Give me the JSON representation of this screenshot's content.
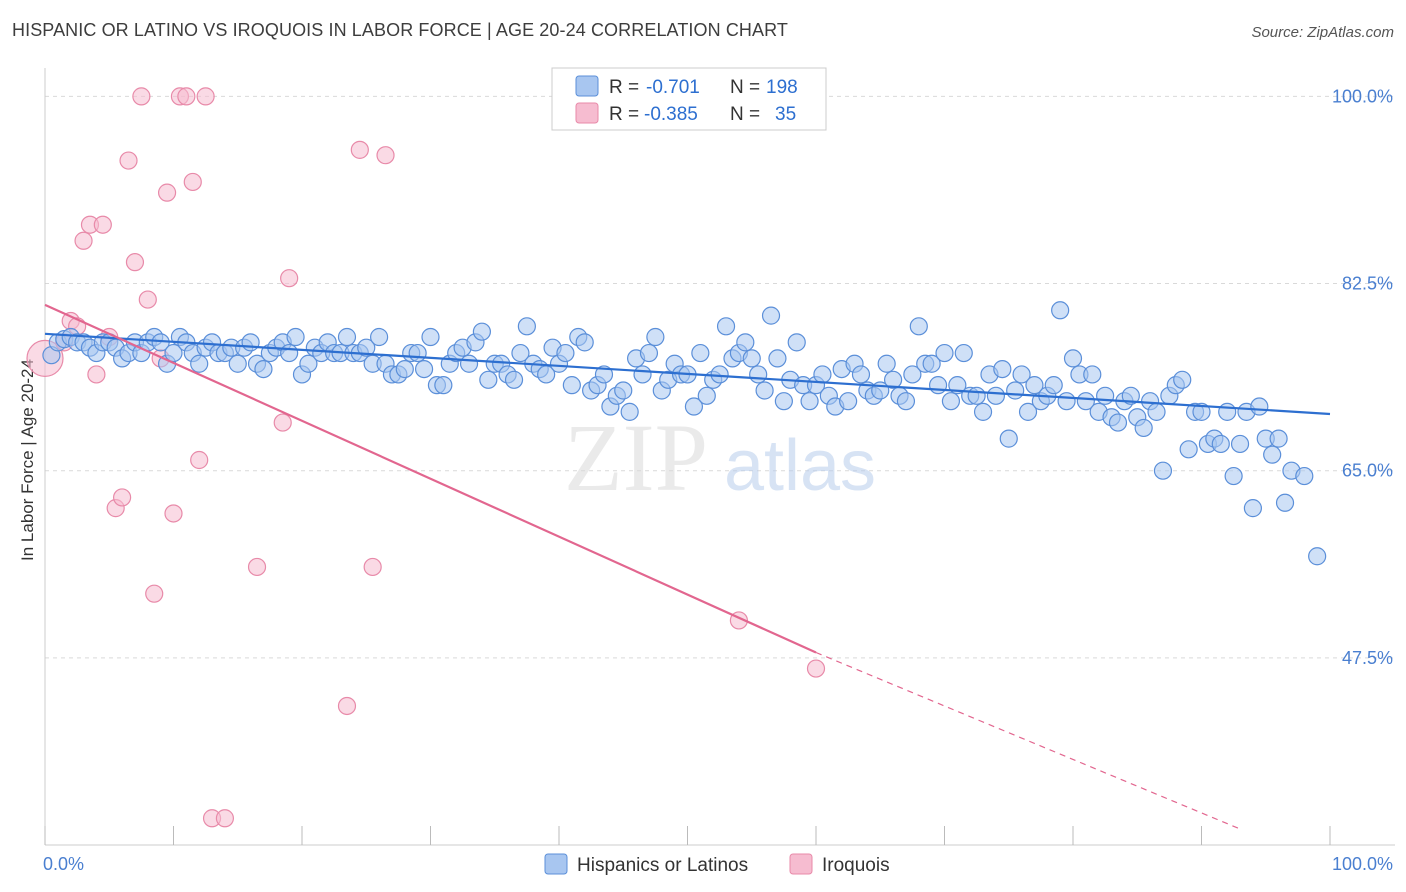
{
  "title": "HISPANIC OR LATINO VS IROQUOIS IN LABOR FORCE | AGE 20-24 CORRELATION CHART",
  "source": "Source: ZipAtlas.com",
  "watermark": {
    "zip": "ZIP",
    "atlas": "atlas"
  },
  "colors": {
    "blue_fill": "#a8c6f0",
    "blue_stroke": "#5b8fd9",
    "blue_line": "#2d6fd0",
    "pink_fill": "#f6bcd0",
    "pink_stroke": "#e88aa9",
    "pink_line": "#e2668f",
    "tick_text": "#4a7fd0",
    "grid": "#d9d9d9"
  },
  "legend": {
    "rows": [
      {
        "r_label": "R =",
        "r_value": "-0.701",
        "n_label": "N =",
        "n_value": "198"
      },
      {
        "r_label": "R =",
        "r_value": "-0.385",
        "n_label": "N =",
        "n_value": "35"
      }
    ]
  },
  "chart_data": {
    "type": "scatter",
    "ylabel": "In Labor Force | Age 20-24",
    "xlim": [
      0,
      100
    ],
    "ylim": [
      30,
      102
    ],
    "x_tick_labels": [
      "0.0%",
      "100.0%"
    ],
    "y_ticks": [
      47.5,
      65.0,
      82.5,
      100.0
    ],
    "y_tick_labels": [
      "47.5%",
      "65.0%",
      "82.5%",
      "100.0%"
    ],
    "grid": true,
    "legend_position": "top-center",
    "series": [
      {
        "name": "Hispanics or Latinos",
        "color": "blue",
        "points": [
          [
            0.5,
            75.8
          ],
          [
            1,
            77
          ],
          [
            1.5,
            77.3
          ],
          [
            2,
            77.5
          ],
          [
            2.5,
            77
          ],
          [
            3,
            77
          ],
          [
            3.5,
            76.5
          ],
          [
            4,
            76
          ],
          [
            4.5,
            77
          ],
          [
            5,
            77
          ],
          [
            5.5,
            76.5
          ],
          [
            6,
            75.5
          ],
          [
            6.5,
            76
          ],
          [
            7,
            77
          ],
          [
            7.5,
            76
          ],
          [
            8,
            77
          ],
          [
            8.5,
            77.5
          ],
          [
            9,
            77
          ],
          [
            9.5,
            75
          ],
          [
            10,
            76
          ],
          [
            10.5,
            77.5
          ],
          [
            11,
            77
          ],
          [
            11.5,
            76
          ],
          [
            12,
            75
          ],
          [
            12.5,
            76.5
          ],
          [
            13,
            77
          ],
          [
            13.5,
            76
          ],
          [
            14,
            76
          ],
          [
            14.5,
            76.5
          ],
          [
            15,
            75
          ],
          [
            15.5,
            76.5
          ],
          [
            16,
            77
          ],
          [
            16.5,
            75
          ],
          [
            17,
            74.5
          ],
          [
            17.5,
            76
          ],
          [
            18,
            76.5
          ],
          [
            18.5,
            77
          ],
          [
            19,
            76
          ],
          [
            19.5,
            77.5
          ],
          [
            20,
            74
          ],
          [
            20.5,
            75
          ],
          [
            21,
            76.5
          ],
          [
            21.5,
            76
          ],
          [
            22,
            77
          ],
          [
            22.5,
            76
          ],
          [
            23,
            76
          ],
          [
            23.5,
            77.5
          ],
          [
            24,
            76
          ],
          [
            24.5,
            76
          ],
          [
            25,
            76.5
          ],
          [
            25.5,
            75
          ],
          [
            26,
            77.5
          ],
          [
            26.5,
            75
          ],
          [
            27,
            74
          ],
          [
            27.5,
            74
          ],
          [
            28,
            74.5
          ],
          [
            28.5,
            76
          ],
          [
            29,
            76
          ],
          [
            29.5,
            74.5
          ],
          [
            30,
            77.5
          ],
          [
            30.5,
            73
          ],
          [
            31,
            73
          ],
          [
            31.5,
            75
          ],
          [
            32,
            76
          ],
          [
            32.5,
            76.5
          ],
          [
            33,
            75
          ],
          [
            33.5,
            77
          ],
          [
            34,
            78
          ],
          [
            34.5,
            73.5
          ],
          [
            35,
            75
          ],
          [
            35.5,
            75
          ],
          [
            36,
            74
          ],
          [
            36.5,
            73.5
          ],
          [
            37,
            76
          ],
          [
            37.5,
            78.5
          ],
          [
            38,
            75
          ],
          [
            38.5,
            74.5
          ],
          [
            39,
            74
          ],
          [
            39.5,
            76.5
          ],
          [
            40,
            75
          ],
          [
            40.5,
            76
          ],
          [
            41,
            73
          ],
          [
            41.5,
            77.5
          ],
          [
            42,
            77
          ],
          [
            42.5,
            72.5
          ],
          [
            43,
            73
          ],
          [
            43.5,
            74
          ],
          [
            44,
            71
          ],
          [
            44.5,
            72
          ],
          [
            45,
            72.5
          ],
          [
            45.5,
            70.5
          ],
          [
            46,
            75.5
          ],
          [
            46.5,
            74
          ],
          [
            47,
            76
          ],
          [
            47.5,
            77.5
          ],
          [
            48,
            72.5
          ],
          [
            48.5,
            73.5
          ],
          [
            49,
            75
          ],
          [
            49.5,
            74
          ],
          [
            50,
            74
          ],
          [
            50.5,
            71
          ],
          [
            51,
            76
          ],
          [
            51.5,
            72
          ],
          [
            52,
            73.5
          ],
          [
            52.5,
            74
          ],
          [
            53,
            78.5
          ],
          [
            53.5,
            75.5
          ],
          [
            54,
            76
          ],
          [
            54.5,
            77
          ],
          [
            55,
            75.5
          ],
          [
            55.5,
            74
          ],
          [
            56,
            72.5
          ],
          [
            56.5,
            79.5
          ],
          [
            57,
            75.5
          ],
          [
            57.5,
            71.5
          ],
          [
            58,
            73.5
          ],
          [
            58.5,
            77
          ],
          [
            59,
            73
          ],
          [
            59.5,
            71.5
          ],
          [
            60,
            73
          ],
          [
            60.5,
            74
          ],
          [
            61,
            72
          ],
          [
            61.5,
            71
          ],
          [
            62,
            74.5
          ],
          [
            62.5,
            71.5
          ],
          [
            63,
            75
          ],
          [
            63.5,
            74
          ],
          [
            64,
            72.5
          ],
          [
            64.5,
            72
          ],
          [
            65,
            72.5
          ],
          [
            65.5,
            75
          ],
          [
            66,
            73.5
          ],
          [
            66.5,
            72
          ],
          [
            67,
            71.5
          ],
          [
            67.5,
            74
          ],
          [
            68,
            78.5
          ],
          [
            68.5,
            75
          ],
          [
            69,
            75
          ],
          [
            69.5,
            73
          ],
          [
            70,
            76
          ],
          [
            70.5,
            71.5
          ],
          [
            71,
            73
          ],
          [
            71.5,
            76
          ],
          [
            72,
            72
          ],
          [
            72.5,
            72
          ],
          [
            73,
            70.5
          ],
          [
            73.5,
            74
          ],
          [
            74,
            72
          ],
          [
            74.5,
            74.5
          ],
          [
            75,
            68
          ],
          [
            75.5,
            72.5
          ],
          [
            76,
            74
          ],
          [
            76.5,
            70.5
          ],
          [
            77,
            73
          ],
          [
            77.5,
            71.5
          ],
          [
            78,
            72
          ],
          [
            78.5,
            73
          ],
          [
            79,
            80
          ],
          [
            79.5,
            71.5
          ],
          [
            80,
            75.5
          ],
          [
            80.5,
            74
          ],
          [
            81,
            71.5
          ],
          [
            81.5,
            74
          ],
          [
            82,
            70.5
          ],
          [
            82.5,
            72
          ],
          [
            83,
            70
          ],
          [
            83.5,
            69.5
          ],
          [
            84,
            71.5
          ],
          [
            84.5,
            72
          ],
          [
            85,
            70
          ],
          [
            85.5,
            69
          ],
          [
            86,
            71.5
          ],
          [
            86.5,
            70.5
          ],
          [
            87,
            65
          ],
          [
            87.5,
            72
          ],
          [
            88,
            73
          ],
          [
            88.5,
            73.5
          ],
          [
            89,
            67
          ],
          [
            89.5,
            70.5
          ],
          [
            90,
            70.5
          ],
          [
            90.5,
            67.5
          ],
          [
            91,
            68
          ],
          [
            91.5,
            67.5
          ],
          [
            92,
            70.5
          ],
          [
            92.5,
            64.5
          ],
          [
            93,
            67.5
          ],
          [
            93.5,
            70.5
          ],
          [
            94,
            61.5
          ],
          [
            94.5,
            71
          ],
          [
            95,
            68
          ],
          [
            95.5,
            66.5
          ],
          [
            96,
            68
          ],
          [
            96.5,
            62
          ],
          [
            97,
            65
          ],
          [
            98,
            64.5
          ],
          [
            99,
            57
          ]
        ]
      },
      {
        "name": "Iroquois",
        "color": "pink",
        "points": [
          [
            0,
            75.5
          ],
          [
            1.5,
            77
          ],
          [
            2,
            79
          ],
          [
            2.5,
            78.5
          ],
          [
            3,
            86.5
          ],
          [
            3.5,
            88
          ],
          [
            4,
            74
          ],
          [
            4.5,
            88
          ],
          [
            5,
            77.5
          ],
          [
            5.5,
            61.5
          ],
          [
            6,
            62.5
          ],
          [
            6.5,
            94
          ],
          [
            7,
            84.5
          ],
          [
            7.5,
            100
          ],
          [
            8,
            81
          ],
          [
            8.5,
            53.5
          ],
          [
            9,
            75.5
          ],
          [
            9.5,
            91
          ],
          [
            10,
            61
          ],
          [
            10.5,
            100
          ],
          [
            11,
            100
          ],
          [
            11.5,
            92
          ],
          [
            12,
            66
          ],
          [
            12.5,
            100
          ],
          [
            13,
            32.5
          ],
          [
            14,
            32.5
          ],
          [
            16.5,
            56
          ],
          [
            18.5,
            69.5
          ],
          [
            19,
            83
          ],
          [
            23.5,
            43
          ],
          [
            24.5,
            95
          ],
          [
            25.5,
            56
          ],
          [
            26.5,
            94.5
          ],
          [
            54,
            51
          ],
          [
            60,
            46.5
          ]
        ]
      }
    ],
    "trendlines": [
      {
        "series": "Hispanics or Latinos",
        "x": [
          0,
          100
        ],
        "y": [
          77.8,
          70.3
        ],
        "style": "solid"
      },
      {
        "series": "Iroquois",
        "x_solid": [
          0,
          60
        ],
        "y_solid": [
          80.5,
          48
        ],
        "x_dashed": [
          60,
          93
        ],
        "y_dashed": [
          48,
          31.5
        ]
      }
    ]
  }
}
